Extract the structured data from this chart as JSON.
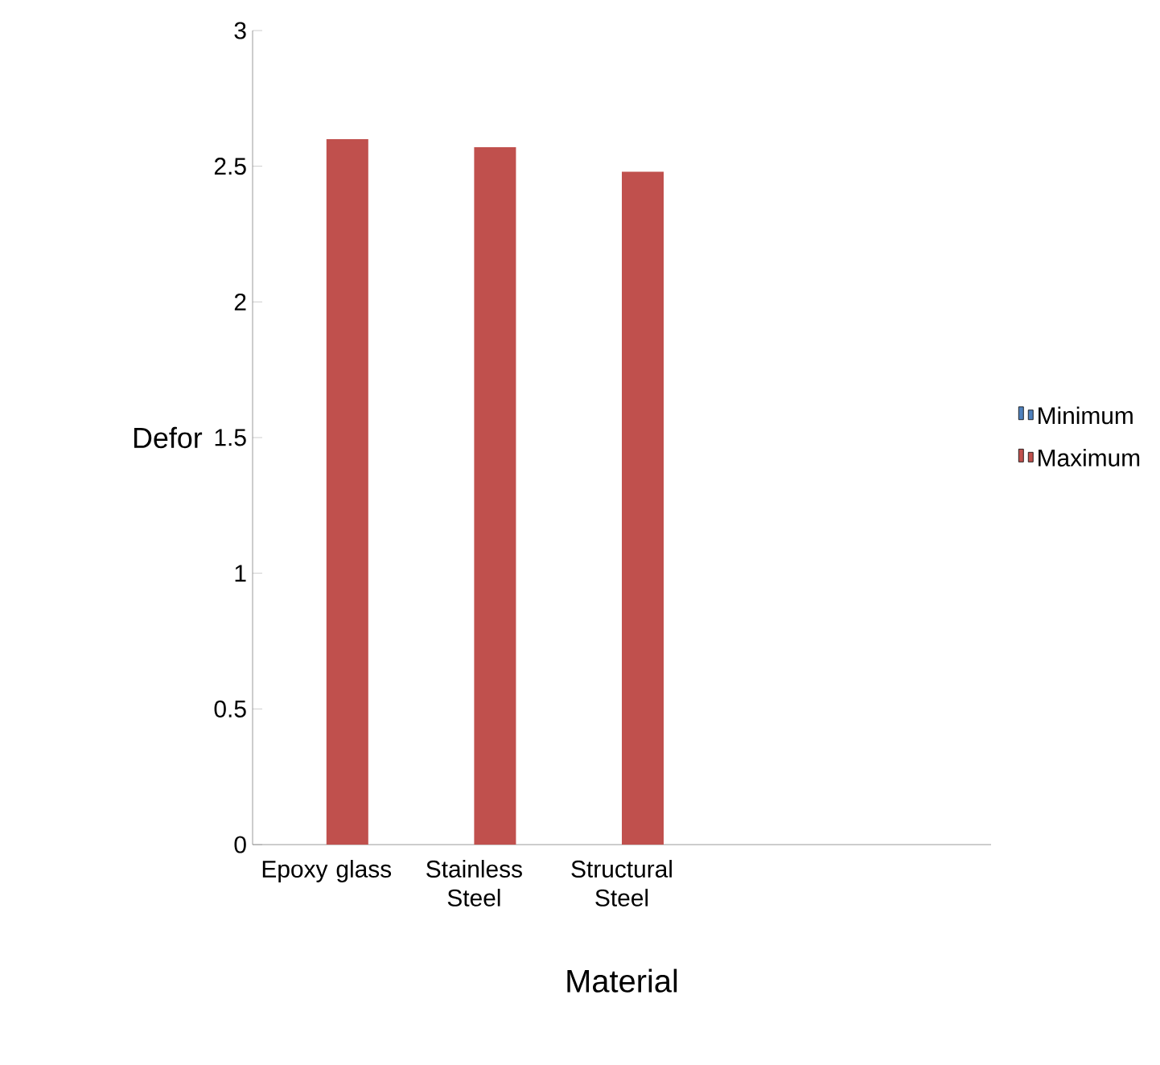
{
  "chart_data": {
    "type": "bar",
    "xlabel": "Material",
    "ylabel": "Defor",
    "categories": [
      "Epoxy glass",
      "Stainless Steel",
      "Structural Steel",
      null,
      null
    ],
    "series": [
      {
        "name": "Minimum",
        "color": "#4f81bd",
        "values": [
          0,
          0,
          0,
          null,
          null
        ]
      },
      {
        "name": "Maximum",
        "color": "#c0504d",
        "values": [
          2.6,
          2.57,
          2.48,
          null,
          null
        ]
      }
    ],
    "ylim": [
      0,
      3
    ],
    "yticks": [
      0,
      0.5,
      1,
      1.5,
      2,
      2.5,
      3
    ],
    "legend": "right",
    "grid": false
  }
}
